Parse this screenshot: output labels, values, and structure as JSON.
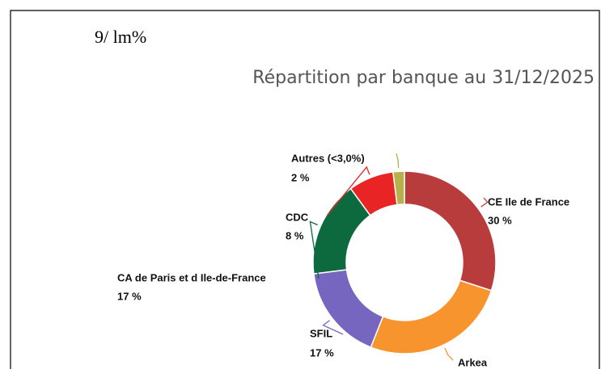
{
  "header": {
    "text": "9/ lm%"
  },
  "chart_data": {
    "type": "pie",
    "title": "Répartition par banque au 31/12/2025",
    "categories": [
      "CE Ile de France",
      "Arkea",
      "SFIL",
      "CA de Paris et d Ile-de-France",
      "CDC",
      "Autres (<3,0%)"
    ],
    "values": [
      30,
      26,
      17,
      17,
      8,
      2
    ],
    "value_labels": [
      "30 %",
      null,
      "17 %",
      "17 %",
      "8 %",
      "2 %"
    ],
    "colors": [
      "#b83c3c",
      "#f7942d",
      "#7766c0",
      "#0c6a3e",
      "#e82424",
      "#b8b04a"
    ]
  }
}
